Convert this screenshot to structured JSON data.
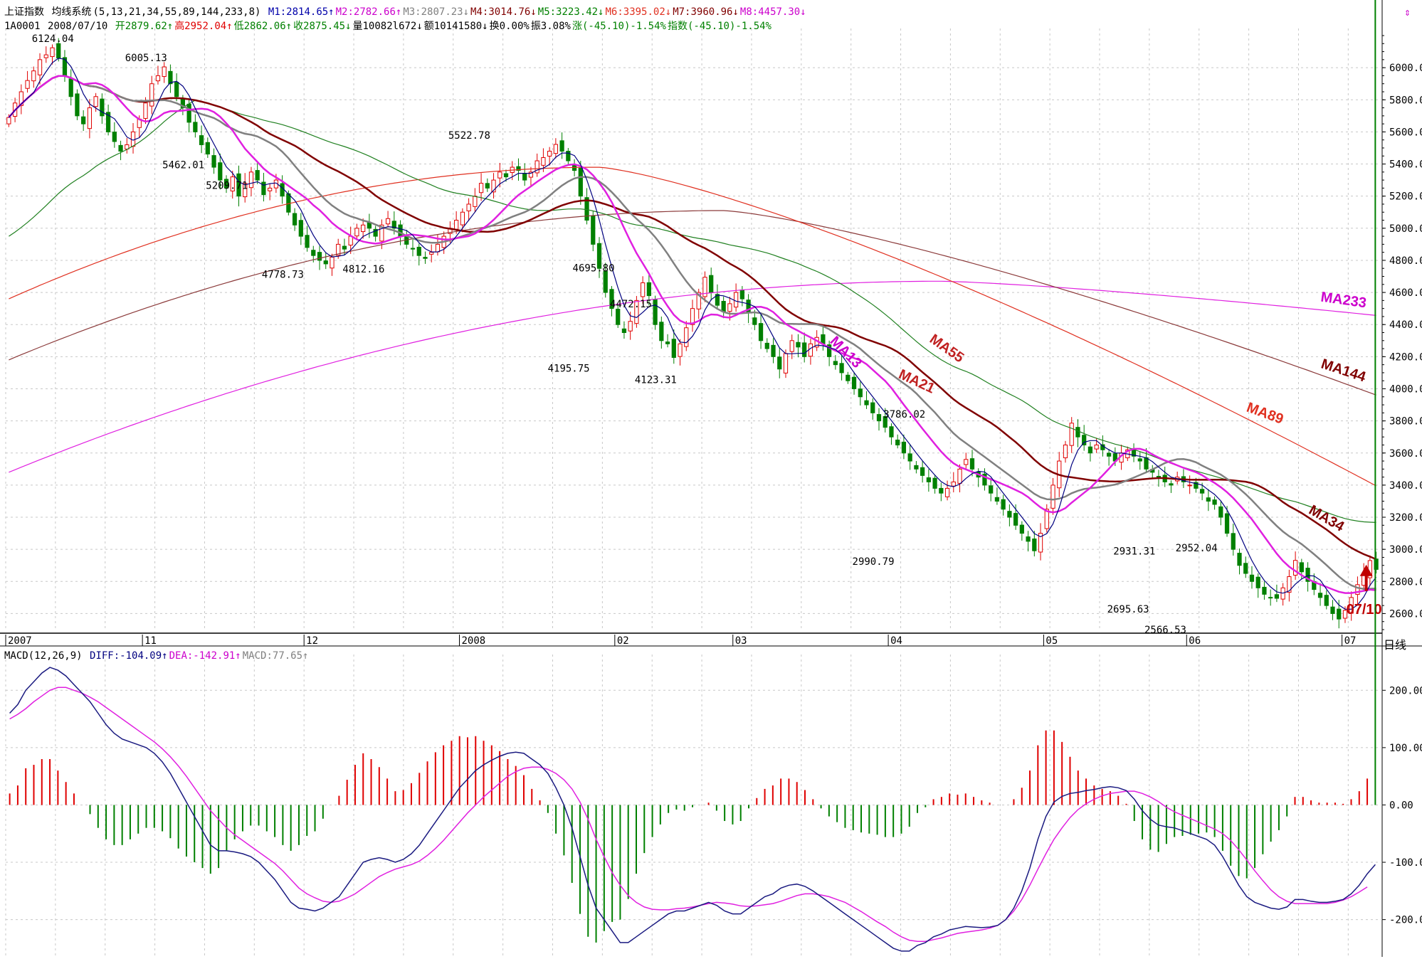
{
  "header": {
    "index_name": "上证指数",
    "study_name": "均线系统",
    "study_params": "(5,13,21,34,55,89,144,233,8)",
    "ma_values": [
      {
        "label": "M1:2814.65",
        "arrow": "↑",
        "color": "#0000aa"
      },
      {
        "label": "M2:2782.66",
        "arrow": "↑",
        "color": "#cc00cc"
      },
      {
        "label": "M3:2807.23",
        "arrow": "↓",
        "color": "#808080"
      },
      {
        "label": "M4:3014.76",
        "arrow": "↓",
        "color": "#800000"
      },
      {
        "label": "M5:3223.42",
        "arrow": "↓",
        "color": "#008000"
      },
      {
        "label": "M6:3395.02",
        "arrow": "↓",
        "color": "#e03020"
      },
      {
        "label": "M7:3960.96",
        "arrow": "↓",
        "color": "#800000"
      },
      {
        "label": "M8:4457.30",
        "arrow": "↓",
        "color": "#cc00cc"
      }
    ],
    "code": "1A0001",
    "date": "2008/07/10",
    "quote_items": [
      {
        "label": "开2879.62",
        "arrow": "↑",
        "color": "#008000"
      },
      {
        "label": "高2952.04",
        "arrow": "↑",
        "color": "#e00000"
      },
      {
        "label": "低2862.06",
        "arrow": "↑",
        "color": "#008000"
      },
      {
        "label": "收2875.45",
        "arrow": "↓",
        "color": "#008000"
      },
      {
        "label": "量10082l672",
        "arrow": "↓",
        "color": "#000000"
      },
      {
        "label": "额10141580",
        "arrow": "↓",
        "color": "#000000"
      },
      {
        "label": "换0.00%",
        "arrow": "",
        "color": "#000000"
      },
      {
        "label": "振3.08%",
        "arrow": "",
        "color": "#000000"
      },
      {
        "label": "涨(-45.10)-1.54%",
        "arrow": "",
        "color": "#008000"
      },
      {
        "label": "指数(-45.10)-1.54%",
        "arrow": "",
        "color": "#008000"
      }
    ],
    "macd_title": "MACD(12,26,9)",
    "macd_items": [
      {
        "label": "DIFF:-104.09",
        "arrow": "↑",
        "color": "#000080"
      },
      {
        "label": "DEA:-142.91",
        "arrow": "↑",
        "color": "#cc00cc"
      },
      {
        "label": "MACD:77.65",
        "arrow": "↑",
        "color": "#808080"
      }
    ],
    "corner_icon": "up-down-arrows-icon",
    "period_label": "日线"
  },
  "chart_data": [
    {
      "type": "candlestick",
      "title": "上证指数 均线系统",
      "ylim": [
        2500,
        6200
      ],
      "y_ticks": [
        2600,
        2800,
        3000,
        3200,
        3400,
        3600,
        3800,
        4000,
        4200,
        4400,
        4600,
        4800,
        5000,
        5200,
        5400,
        5600,
        5800,
        6000
      ],
      "y_tick_labels": [
        "2600.0",
        "2800.0",
        "3000.0",
        "3200.0",
        "3400.0",
        "3600.0",
        "3800.0",
        "4000.0",
        "4200.0",
        "4400.0",
        "4600.0",
        "4800.0",
        "5000.0",
        "5200.0",
        "5400.0",
        "5600.0",
        "5800.0",
        "6000.0"
      ],
      "x_range_sessions": [
        0,
        190
      ],
      "x_labels": [
        {
          "t": 0,
          "label": "2007"
        },
        {
          "t": 26,
          "label": "11"
        },
        {
          "t": 58,
          "label": "12"
        },
        {
          "t": 88,
          "label": "2008"
        },
        {
          "t": 118,
          "label": "02"
        },
        {
          "t": 140,
          "label": "03"
        },
        {
          "t": 170,
          "label": "04"
        },
        {
          "t": 200,
          "label": "05"
        },
        {
          "t": 228,
          "label": "06"
        },
        {
          "t": 258,
          "label": "07"
        }
      ],
      "closes": [
        5690,
        5780,
        5850,
        5920,
        5980,
        6050,
        6080,
        6124,
        6060,
        5950,
        5820,
        5700,
        5650,
        5750,
        5820,
        5700,
        5600,
        5540,
        5480,
        5520,
        5600,
        5680,
        5780,
        5900,
        5950,
        6005,
        5900,
        5820,
        5750,
        5660,
        5600,
        5520,
        5462,
        5380,
        5300,
        5250,
        5320,
        5200,
        5280,
        5350,
        5300,
        5209,
        5250,
        5300,
        5200,
        5100,
        5020,
        4950,
        4880,
        4830,
        4800,
        4778,
        4820,
        4900,
        4870,
        4950,
        5000,
        5020,
        5000,
        4950,
        5020,
        5060,
        5000,
        4950,
        4900,
        4870,
        4830,
        4812,
        4850,
        4900,
        4950,
        5000,
        5050,
        5100,
        5150,
        5200,
        5280,
        5250,
        5300,
        5350,
        5320,
        5380,
        5360,
        5300,
        5350,
        5420,
        5440,
        5480,
        5522,
        5480,
        5420,
        5360,
        5200,
        5050,
        4900,
        4750,
        4600,
        4500,
        4400,
        4350,
        4420,
        4550,
        4660,
        4580,
        4400,
        4300,
        4280,
        4195,
        4280,
        4380,
        4500,
        4600,
        4695,
        4600,
        4520,
        4480,
        4530,
        4600,
        4560,
        4472,
        4400,
        4300,
        4250,
        4200,
        4123,
        4220,
        4300,
        4260,
        4200,
        4280,
        4320,
        4280,
        4200,
        4150,
        4100,
        4050,
        4000,
        3950,
        3900,
        3850,
        3800,
        3760,
        3700,
        3650,
        3600,
        3550,
        3500,
        3460,
        3420,
        3380,
        3350,
        3380,
        3420,
        3500,
        3560,
        3500,
        3450,
        3400,
        3350,
        3300,
        3250,
        3200,
        3150,
        3100,
        3050,
        2991,
        3100,
        3250,
        3400,
        3550,
        3650,
        3786,
        3700,
        3650,
        3600,
        3650,
        3620,
        3580,
        3550,
        3600,
        3620,
        3580,
        3550,
        3500,
        3480,
        3450,
        3420,
        3400,
        3450,
        3420,
        3400,
        3380,
        3350,
        3300,
        3280,
        3200,
        3100,
        3000,
        2900,
        2850,
        2800,
        2760,
        2720,
        2700,
        2695,
        2760,
        2830,
        2931,
        2860,
        2800,
        2750,
        2700,
        2650,
        2600,
        2566,
        2620,
        2700,
        2780,
        2850,
        2930,
        2875
      ],
      "annotations": [
        {
          "t": 7,
          "price": 6124.04,
          "label": "6124.04",
          "pos": "above"
        },
        {
          "t": 25,
          "price": 6005.13,
          "label": "6005.13",
          "pos": "above"
        },
        {
          "t": 32,
          "price": 5462.01,
          "label": "5462.01",
          "pos": "below"
        },
        {
          "t": 41,
          "price": 5209.71,
          "label": "5209.71",
          "pos": "above"
        },
        {
          "t": 51,
          "price": 4778.73,
          "label": "4778.73",
          "pos": "below"
        },
        {
          "t": 67,
          "price": 4812.16,
          "label": "4812.16",
          "pos": "below"
        },
        {
          "t": 88,
          "price": 5522.78,
          "label": "5522.78",
          "pos": "above"
        },
        {
          "t": 107,
          "price": 4195.75,
          "label": "4195.75",
          "pos": "below"
        },
        {
          "t": 112,
          "price": 4695.8,
          "label": "4695.80",
          "pos": "above"
        },
        {
          "t": 119,
          "price": 4472.15,
          "label": "4472.15",
          "pos": "above"
        },
        {
          "t": 124,
          "price": 4123.31,
          "label": "4123.31",
          "pos": "below"
        },
        {
          "t": 165,
          "price": 2990.79,
          "label": "2990.79",
          "pos": "below"
        },
        {
          "t": 171,
          "price": 3786.02,
          "label": "3786.02",
          "pos": "above"
        },
        {
          "t": 216,
          "price": 2931.31,
          "label": "2931.31",
          "pos": "above"
        },
        {
          "t": 215,
          "price": 2695.63,
          "label": "2695.63",
          "pos": "below"
        },
        {
          "t": 222,
          "price": 2566.53,
          "label": "2566.53",
          "pos": "below"
        },
        {
          "t": 228,
          "price": 2952.04,
          "label": "2952.04",
          "pos": "above"
        }
      ],
      "ma_labels": [
        {
          "label": "MA233",
          "color": "#cc00cc"
        },
        {
          "label": "MA144",
          "color": "#800000"
        },
        {
          "label": "MA89",
          "color": "#e03020"
        },
        {
          "label": "MA55",
          "color": "#c02020"
        },
        {
          "label": "MA34",
          "color": "#800000"
        },
        {
          "label": "MA13",
          "color": "#cc00cc"
        },
        {
          "label": "MA21",
          "color": "#c02020"
        }
      ],
      "series_colors": {
        "MA5": "#000080",
        "MA13": "#e020e0",
        "MA21": "#808080",
        "MA34": "#800000",
        "MA55": "#208020",
        "MA89": "#e03020",
        "MA144": "#8b3a3a",
        "MA233": "#e020e0",
        "up": "#e00000",
        "down": "#008000"
      },
      "event_marker": {
        "label": "07/10",
        "color": "#c00000"
      }
    },
    {
      "type": "macd",
      "title": "MACD(12,26,9)",
      "ylim": [
        -265,
        250
      ],
      "y_ticks": [
        200,
        100,
        0,
        -100,
        -200
      ],
      "y_tick_labels": [
        "200.00",
        "100.00",
        "0.00",
        "-100.00",
        "-200.00"
      ],
      "diff": [
        160,
        175,
        200,
        215,
        230,
        240,
        235,
        225,
        210,
        195,
        180,
        160,
        140,
        125,
        115,
        110,
        105,
        100,
        90,
        75,
        55,
        30,
        5,
        -20,
        -45,
        -70,
        -80,
        -80,
        -82,
        -85,
        -90,
        -100,
        -115,
        -130,
        -150,
        -170,
        -180,
        -182,
        -185,
        -180,
        -170,
        -160,
        -140,
        -120,
        -100,
        -95,
        -92,
        -95,
        -100,
        -95,
        -85,
        -70,
        -50,
        -30,
        -10,
        10,
        30,
        45,
        60,
        70,
        78,
        85,
        90,
        92,
        90,
        80,
        70,
        55,
        30,
        0,
        -40,
        -90,
        -140,
        -180,
        -200,
        -220,
        -240,
        -240,
        -230,
        -220,
        -210,
        -200,
        -190,
        -185,
        -185,
        -180,
        -175,
        -170,
        -175,
        -185,
        -190,
        -190,
        -180,
        -170,
        -160,
        -155,
        -145,
        -140,
        -138,
        -142,
        -150,
        -160,
        -170,
        -180,
        -190,
        -200,
        -210,
        -220,
        -230,
        -240,
        -250,
        -255,
        -255,
        -245,
        -240,
        -230,
        -225,
        -218,
        -215,
        -212,
        -213,
        -214,
        -213,
        -210,
        -200,
        -180,
        -150,
        -110,
        -60,
        -20,
        5,
        15,
        20,
        22,
        25,
        27,
        30,
        32,
        30,
        25,
        10,
        -10,
        -25,
        -35,
        -38,
        -40,
        -45,
        -50,
        -55,
        -60,
        -70,
        -90,
        -115,
        -140,
        -160,
        -170,
        -175,
        -180,
        -182,
        -178,
        -165,
        -165,
        -168,
        -170,
        -170,
        -168,
        -165,
        -155,
        -140,
        -120,
        -104
      ],
      "dea": [
        150,
        158,
        168,
        180,
        190,
        200,
        205,
        205,
        200,
        195,
        188,
        180,
        170,
        160,
        150,
        140,
        130,
        120,
        110,
        98,
        84,
        68,
        50,
        30,
        10,
        -10,
        -25,
        -40,
        -52,
        -62,
        -72,
        -82,
        -92,
        -102,
        -115,
        -130,
        -145,
        -155,
        -162,
        -168,
        -170,
        -168,
        -162,
        -155,
        -145,
        -135,
        -125,
        -118,
        -112,
        -108,
        -104,
        -98,
        -88,
        -76,
        -62,
        -46,
        -30,
        -14,
        0,
        14,
        26,
        38,
        50,
        58,
        64,
        66,
        66,
        62,
        55,
        44,
        28,
        5,
        -25,
        -60,
        -90,
        -118,
        -140,
        -158,
        -170,
        -178,
        -182,
        -183,
        -183,
        -181,
        -180,
        -178,
        -175,
        -172,
        -170,
        -171,
        -173,
        -176,
        -177,
        -176,
        -174,
        -172,
        -168,
        -163,
        -158,
        -155,
        -155,
        -157,
        -160,
        -165,
        -170,
        -178,
        -186,
        -195,
        -204,
        -212,
        -222,
        -230,
        -236,
        -238,
        -238,
        -235,
        -232,
        -228,
        -224,
        -222,
        -220,
        -218,
        -215,
        -210,
        -200,
        -185,
        -165,
        -140,
        -112,
        -85,
        -60,
        -40,
        -22,
        -8,
        2,
        10,
        16,
        20,
        22,
        24,
        24,
        20,
        14,
        6,
        -4,
        -12,
        -18,
        -24,
        -30,
        -36,
        -42,
        -50,
        -62,
        -78,
        -96,
        -115,
        -132,
        -148,
        -160,
        -168,
        -172,
        -172,
        -172,
        -172,
        -172,
        -170,
        -166,
        -160,
        -152,
        -143
      ],
      "bar_colors": {
        "pos": "#e00000",
        "neg": "#008000"
      },
      "axis_line_color": "#000000"
    }
  ]
}
